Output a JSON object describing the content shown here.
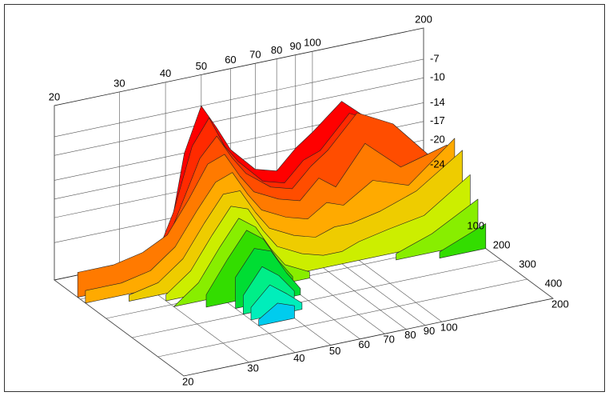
{
  "chart_data": {
    "type": "waterfall",
    "x": [
      20,
      25,
      30,
      35,
      40,
      45,
      50,
      55,
      60,
      70,
      80,
      90,
      100,
      120,
      150,
      200
    ],
    "xlim": [
      20,
      200
    ],
    "xticks": [
      20,
      30,
      40,
      50,
      60,
      70,
      80,
      90,
      100,
      200
    ],
    "xscale": "log",
    "zlim": [
      -30,
      -2
    ],
    "zticks": [
      -7,
      -10,
      -14,
      -17,
      -20,
      -24
    ],
    "depthlim": [
      0,
      500
    ],
    "depthticks": [
      100,
      200,
      300,
      400
    ],
    "grid": true,
    "series": [
      {
        "depth": 0,
        "color": "#ff0000",
        "values": [
          null,
          null,
          null,
          null,
          -30,
          -14,
          -7,
          -11,
          -15,
          -19,
          -20,
          -17,
          -15,
          -11,
          -16,
          null
        ]
      },
      {
        "depth": 30,
        "color": "#ff2a00",
        "values": [
          null,
          null,
          null,
          -30,
          -22,
          -12,
          -8,
          -13,
          -16,
          -20,
          -21,
          -18,
          -17,
          -12,
          -15,
          -24
        ]
      },
      {
        "depth": 60,
        "color": "#ff4d00",
        "values": [
          null,
          null,
          null,
          -28,
          -20,
          -13,
          -10,
          -14,
          -17,
          -20,
          -21,
          -18,
          -16,
          -11,
          -14,
          -22
        ]
      },
      {
        "depth": 90,
        "color": "#ff7a00",
        "values": [
          -26,
          -26,
          -25,
          -23,
          -18,
          -13,
          -12,
          -16,
          -19,
          -21,
          -22,
          -19,
          -21,
          -15,
          -20,
          -18
        ]
      },
      {
        "depth": 120,
        "color": "#ffaa00",
        "values": [
          -28,
          -28,
          -27,
          -24,
          -19,
          -15,
          -14,
          -18,
          -21,
          -23,
          -24,
          -22,
          -23,
          -20,
          -22,
          -16
        ]
      },
      {
        "depth": 150,
        "color": "#eecc00",
        "values": [
          null,
          -29,
          -28,
          -25,
          -20,
          -16,
          -16,
          -20,
          -23,
          -25,
          -26,
          -25,
          -25,
          -24,
          -22,
          -17
        ]
      },
      {
        "depth": 180,
        "color": "#ccee00",
        "values": [
          null,
          null,
          -29,
          -26,
          -21,
          -17,
          -18,
          -22,
          -25,
          -27,
          -28,
          -28,
          -27,
          -26,
          -25,
          -20
        ]
      },
      {
        "depth": 210,
        "color": "#88ee00",
        "values": [
          null,
          null,
          -30,
          -27,
          -22,
          -18,
          -20,
          -24,
          -27,
          -29,
          null,
          null,
          null,
          -29,
          -27,
          -23
        ]
      },
      {
        "depth": 240,
        "color": "#33dd00",
        "values": [
          null,
          null,
          null,
          -28,
          -23,
          -19,
          -21,
          -25,
          -28,
          null,
          null,
          null,
          null,
          null,
          -29,
          -26
        ]
      },
      {
        "depth": 270,
        "color": "#00dd33",
        "values": [
          null,
          null,
          null,
          null,
          -25,
          -21,
          -22,
          -26,
          -29,
          null,
          null,
          null,
          null,
          null,
          null,
          null
        ]
      },
      {
        "depth": 300,
        "color": "#00ee88",
        "values": [
          null,
          null,
          null,
          null,
          -27,
          -23,
          -25,
          -28,
          null,
          null,
          null,
          null,
          null,
          null,
          null,
          null
        ]
      },
      {
        "depth": 330,
        "color": "#00eebb",
        "values": [
          null,
          null,
          null,
          null,
          -28,
          -25,
          -27,
          -29,
          null,
          null,
          null,
          null,
          null,
          null,
          null,
          null
        ]
      },
      {
        "depth": 360,
        "color": "#00ccee",
        "values": [
          null,
          null,
          null,
          null,
          -29,
          -27,
          -28,
          null,
          null,
          null,
          null,
          null,
          null,
          null,
          null,
          null
        ]
      }
    ]
  }
}
